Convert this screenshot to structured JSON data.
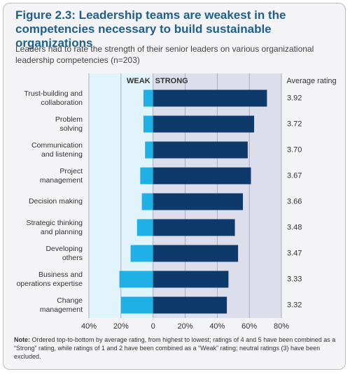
{
  "chart_data": {
    "type": "diverging_bar",
    "title": "Figure 2.3: Leadership teams are weakest in the competencies necessary to build sustainable organizations",
    "subtitle": "Leaders had to rate the strength of their senior leaders on various organizational leadership competencies (n=203)",
    "categories": [
      "Trust-building and\ncollaboration",
      "Problem\nsolving",
      "Communication\nand listening",
      "Project\nmanagement",
      "Decision making",
      "Strategic thinking\nand planning",
      "Developing\nothers",
      "Business and\noperations expertise",
      "Change\nmanagement"
    ],
    "series": [
      {
        "name": "WEAK",
        "color": "#1fb0e6",
        "values": [
          -6,
          -6,
          -5,
          -8,
          -7,
          -10,
          -14,
          -21,
          -20
        ]
      },
      {
        "name": "STRONG",
        "color": "#0e3a6b",
        "values": [
          71,
          63,
          59,
          61,
          56,
          51,
          53,
          47,
          46
        ]
      }
    ],
    "rating_header": "Average rating",
    "ratings": [
      3.92,
      3.72,
      3.7,
      3.67,
      3.66,
      3.48,
      3.47,
      3.33,
      3.32
    ],
    "rating_labels": [
      "3.92",
      "3.72",
      "3.70",
      "3.67",
      "3.66",
      "3.48",
      "3.47",
      "3.33",
      "3.32"
    ],
    "xlim": [
      -40,
      80
    ],
    "xticks": [
      {
        "value": -40,
        "label": "40%"
      },
      {
        "value": -20,
        "label": "20%"
      },
      0,
      {
        "value": 20,
        "label": "20%"
      },
      {
        "value": 40,
        "label": "40%"
      },
      {
        "value": 60,
        "label": "60%"
      },
      {
        "value": 80,
        "label": "80%"
      }
    ],
    "grid": true,
    "note_label": "Note:",
    "note": "Ordered top-to-bottom by average rating, from highest to lowest; ratings of 4 and 5 have been combined as a “Strong” rating, while ratings of 1 and 2 have been combined as a “Weak” rating; neutral ratings (3) have been excluded."
  }
}
